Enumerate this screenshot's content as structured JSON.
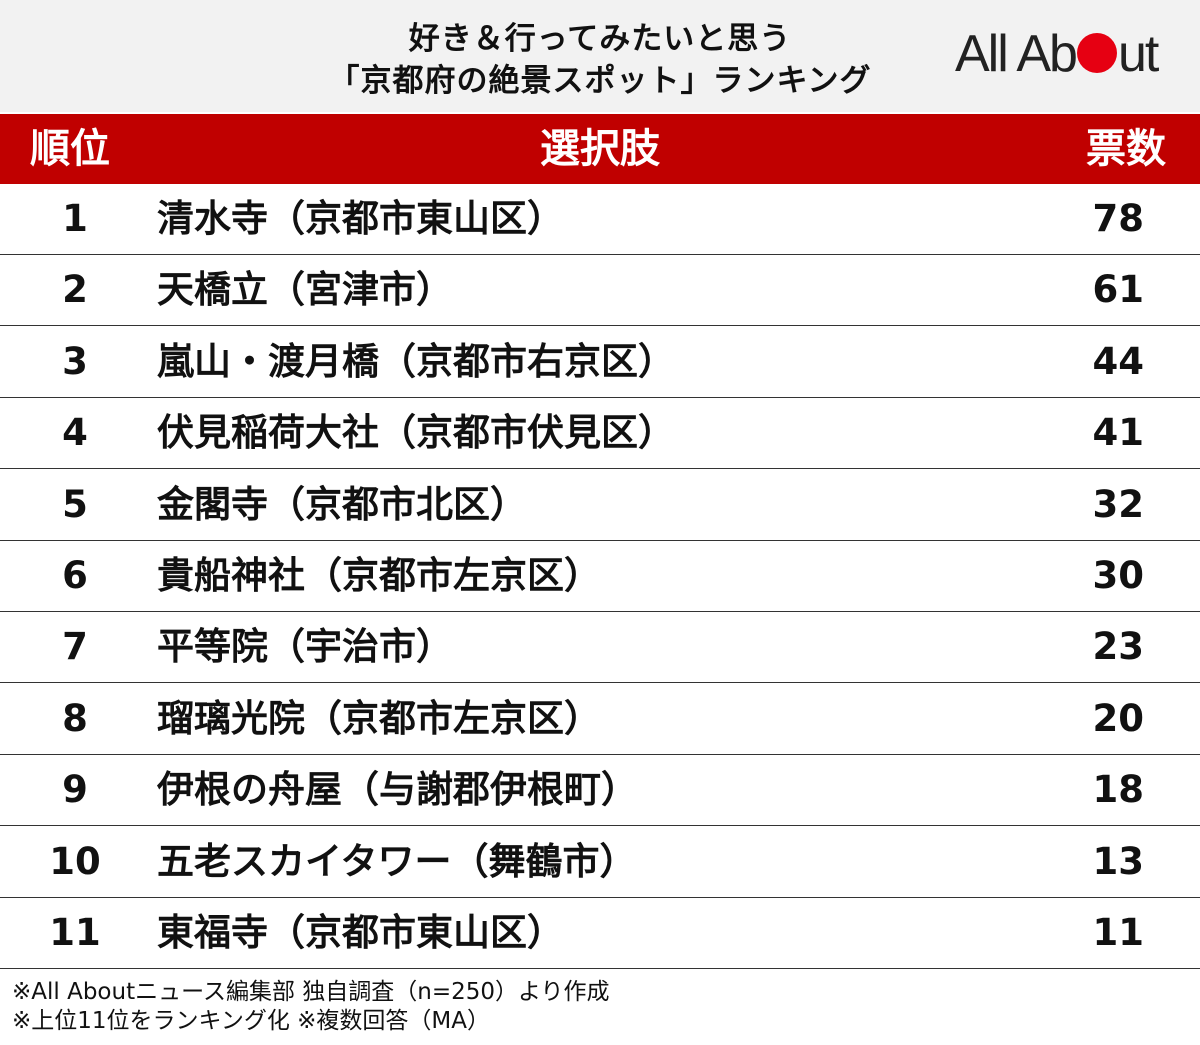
{
  "header": {
    "title_line1": "好き＆行ってみたいと思う",
    "title_line2": "「京都府の絶景スポット」ランキング",
    "logo_prefix": "All Ab",
    "logo_suffix": "ut",
    "logo_dot_color": "#e60012"
  },
  "table": {
    "header_color": "#c00000",
    "col_rank": "順位",
    "col_choice": "選択肢",
    "col_votes": "票数"
  },
  "chart_data": {
    "type": "table",
    "columns": [
      "順位",
      "選択肢",
      "票数"
    ],
    "rows": [
      {
        "rank": "1",
        "name": "清水寺（京都市東山区）",
        "votes": "78"
      },
      {
        "rank": "2",
        "name": "天橋立（宮津市）",
        "votes": "61"
      },
      {
        "rank": "3",
        "name": "嵐山・渡月橋（京都市右京区）",
        "votes": "44"
      },
      {
        "rank": "4",
        "name": "伏見稲荷大社（京都市伏見区）",
        "votes": "41"
      },
      {
        "rank": "5",
        "name": "金閣寺（京都市北区）",
        "votes": "32"
      },
      {
        "rank": "6",
        "name": "貴船神社（京都市左京区）",
        "votes": "30"
      },
      {
        "rank": "7",
        "name": "平等院（宇治市）",
        "votes": "23"
      },
      {
        "rank": "8",
        "name": "瑠璃光院（京都市左京区）",
        "votes": "20"
      },
      {
        "rank": "9",
        "name": "伊根の舟屋（与謝郡伊根町）",
        "votes": "18"
      },
      {
        "rank": "10",
        "name": "五老スカイタワー（舞鶴市）",
        "votes": "13"
      },
      {
        "rank": "11",
        "name": "東福寺（京都市東山区）",
        "votes": "11"
      }
    ]
  },
  "footer": {
    "note1": "※All Aboutニュース編集部 独自調査（n=250）より作成",
    "note2": "※上位11位をランキング化 ※複数回答（MA）"
  }
}
